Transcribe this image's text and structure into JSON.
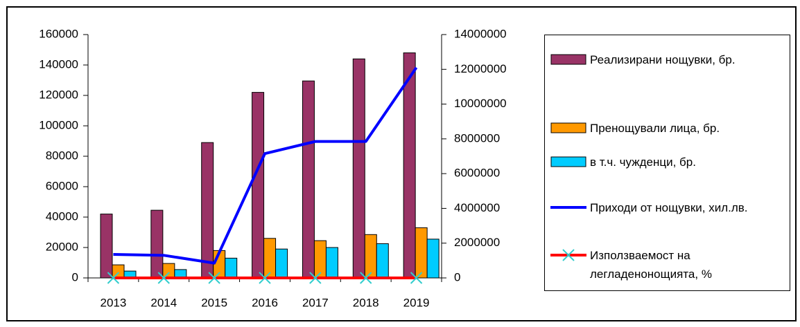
{
  "chart_data": {
    "type": "bar",
    "categories": [
      "2013",
      "2014",
      "2015",
      "2016",
      "2017",
      "2018",
      "2019"
    ],
    "series": [
      {
        "name": "Реализирани нощувки, бр.",
        "type": "bar",
        "color": "#993366",
        "values": [
          42000,
          44500,
          89000,
          122000,
          129500,
          144000,
          148000
        ]
      },
      {
        "name": "Пренощували лица, бр.",
        "type": "bar",
        "color": "#FF9900",
        "values": [
          8600,
          9500,
          18000,
          26000,
          24500,
          28500,
          33000
        ]
      },
      {
        "name": "в т.ч. чужденци, бр.",
        "type": "bar",
        "color": "#00CCFF",
        "values": [
          4500,
          5500,
          13000,
          19000,
          20000,
          22500,
          25500
        ]
      },
      {
        "name": "Приходи от нощувки, хил.лв.",
        "type": "line",
        "axis": "y2",
        "color": "#0000FF",
        "values": [
          1350000,
          1300000,
          850000,
          7150000,
          7850000,
          7850000,
          12100000
        ]
      },
      {
        "name": "Използваемост на легладенонощията, %",
        "type": "line",
        "color": "#FF0000",
        "marker": "x",
        "marker_color": "#33CCCC",
        "values": [
          0,
          0,
          0,
          0,
          0,
          0,
          0
        ]
      }
    ],
    "ylim": [
      0,
      160000
    ],
    "yticks": [
      0,
      20000,
      40000,
      60000,
      80000,
      100000,
      120000,
      140000,
      160000
    ],
    "y2lim": [
      0,
      14000000
    ],
    "y2ticks": [
      0,
      2000000,
      4000000,
      6000000,
      8000000,
      10000000,
      12000000,
      14000000
    ],
    "legend": "right",
    "grid": false
  }
}
